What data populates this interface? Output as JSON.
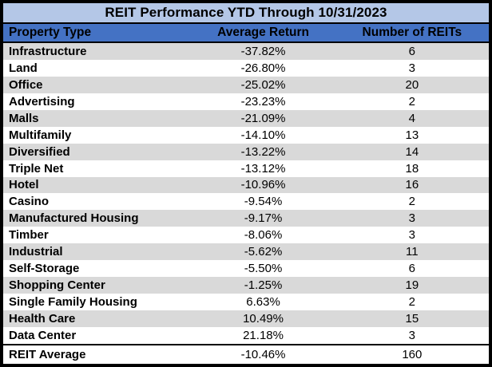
{
  "colors": {
    "title_bg": "#B4C7E7",
    "header_bg": "#4472C4",
    "row_stripe": "#D9D9D9",
    "row_plain": "#FFFFFF",
    "border": "#000000",
    "text": "#000000"
  },
  "chart_data": {
    "type": "table",
    "title": "REIT Performance YTD Through 10/31/2023",
    "columns": [
      "Property Type",
      "Average Return",
      "Number of REITs"
    ],
    "rows": [
      {
        "property_type": "Infrastructure",
        "average_return": "-37.82%",
        "number_of_reits": 6
      },
      {
        "property_type": "Land",
        "average_return": "-26.80%",
        "number_of_reits": 3
      },
      {
        "property_type": "Office",
        "average_return": "-25.02%",
        "number_of_reits": 20
      },
      {
        "property_type": "Advertising",
        "average_return": "-23.23%",
        "number_of_reits": 2
      },
      {
        "property_type": "Malls",
        "average_return": "-21.09%",
        "number_of_reits": 4
      },
      {
        "property_type": "Multifamily",
        "average_return": "-14.10%",
        "number_of_reits": 13
      },
      {
        "property_type": "Diversified",
        "average_return": "-13.22%",
        "number_of_reits": 14
      },
      {
        "property_type": "Triple Net",
        "average_return": "-13.12%",
        "number_of_reits": 18
      },
      {
        "property_type": "Hotel",
        "average_return": "-10.96%",
        "number_of_reits": 16
      },
      {
        "property_type": "Casino",
        "average_return": "-9.54%",
        "number_of_reits": 2
      },
      {
        "property_type": "Manufactured Housing",
        "average_return": "-9.17%",
        "number_of_reits": 3
      },
      {
        "property_type": "Timber",
        "average_return": "-8.06%",
        "number_of_reits": 3
      },
      {
        "property_type": "Industrial",
        "average_return": "-5.62%",
        "number_of_reits": 11
      },
      {
        "property_type": "Self-Storage",
        "average_return": "-5.50%",
        "number_of_reits": 6
      },
      {
        "property_type": "Shopping Center",
        "average_return": "-1.25%",
        "number_of_reits": 19
      },
      {
        "property_type": "Single Family Housing",
        "average_return": "6.63%",
        "number_of_reits": 2
      },
      {
        "property_type": "Health Care",
        "average_return": "10.49%",
        "number_of_reits": 15
      },
      {
        "property_type": "Data Center",
        "average_return": "21.18%",
        "number_of_reits": 3
      }
    ],
    "footer": {
      "property_type": "REIT Average",
      "average_return": "-10.46%",
      "number_of_reits": 160
    },
    "layout": {
      "striped": true,
      "shaded_rows": "odd (1st, 3rd, ...)",
      "column_alignment": [
        "left",
        "center",
        "center"
      ],
      "grid": "none",
      "legend": "none"
    }
  }
}
